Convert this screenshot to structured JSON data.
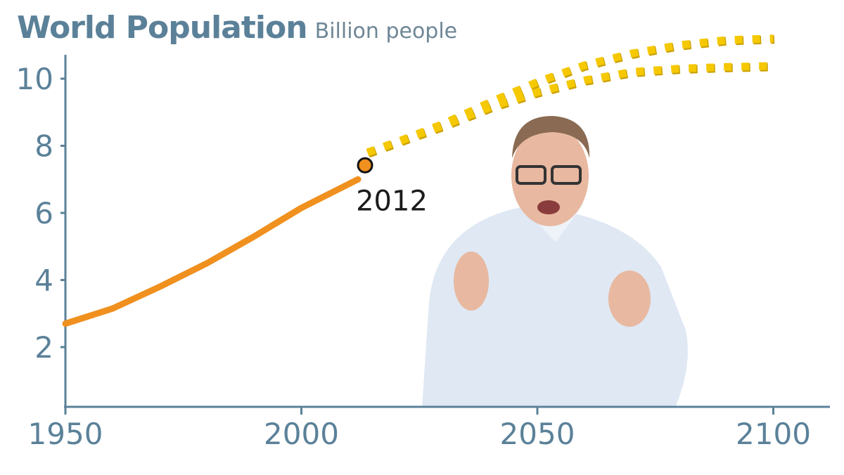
{
  "chart_data": {
    "type": "line",
    "title": "World Population",
    "subtitle": "Billion people",
    "xlabel": "",
    "ylabel": "",
    "xlim": [
      1950,
      2110
    ],
    "ylim": [
      0,
      10.6
    ],
    "x_ticks": [
      "1950",
      "2000",
      "2050",
      "2100"
    ],
    "y_ticks": [
      "2",
      "4",
      "6",
      "8",
      "10"
    ],
    "grid": false,
    "series": [
      {
        "style": "solid",
        "color": "#f0901e",
        "x": [
          1950,
          1960,
          1970,
          1980,
          1990,
          2000,
          2012
        ],
        "y": [
          2.7,
          3.15,
          3.8,
          4.5,
          5.3,
          6.15,
          7.0
        ]
      },
      {
        "style": "dotted",
        "color": "#f5c800",
        "x": [
          2014,
          2020,
          2030,
          2040,
          2050,
          2060,
          2070,
          2080,
          2090,
          2100
        ],
        "y": [
          7.8,
          8.1,
          8.65,
          9.3,
          9.9,
          10.4,
          10.75,
          11.0,
          11.15,
          11.2
        ]
      },
      {
        "style": "dotted",
        "color": "#f5c800",
        "x": [
          2014,
          2020,
          2030,
          2040,
          2050,
          2060,
          2070,
          2080,
          2090,
          2100
        ],
        "y": [
          7.8,
          8.1,
          8.6,
          9.15,
          9.6,
          9.95,
          10.2,
          10.3,
          10.35,
          10.38
        ]
      }
    ],
    "annotations": [
      {
        "label": "2012",
        "x": 2012,
        "y": 7.0
      }
    ]
  },
  "colors": {
    "axis": "#5b8199",
    "history": "#f0901e",
    "projection": "#f5c800"
  }
}
